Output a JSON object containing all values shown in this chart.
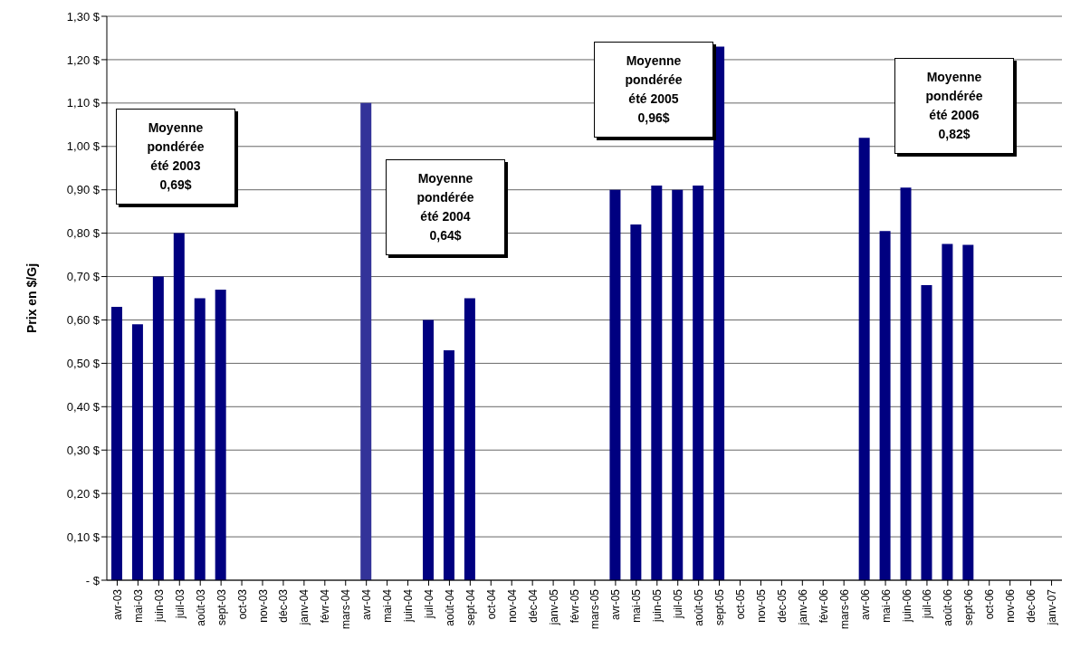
{
  "chart_data": {
    "type": "bar",
    "ylabel": "Prix en $/Gj",
    "categories": [
      "avr-03",
      "mai-03",
      "juin-03",
      "juil-03",
      "août-03",
      "sept-03",
      "oct-03",
      "nov-03",
      "déc-03",
      "janv-04",
      "févr-04",
      "mars-04",
      "avr-04",
      "mai-04",
      "juin-04",
      "juil-04",
      "août-04",
      "sept-04",
      "oct-04",
      "nov-04",
      "déc-04",
      "janv-05",
      "févr-05",
      "mars-05",
      "avr-05",
      "mai-05",
      "juin-05",
      "juil-05",
      "août-05",
      "sept-05",
      "oct-05",
      "nov-05",
      "déc-05",
      "janv-06",
      "févr-06",
      "mars-06",
      "avr-06",
      "mai-06",
      "juin-06",
      "juil-06",
      "août-06",
      "sept-06",
      "oct-06",
      "nov-06",
      "déc-06",
      "janv-07"
    ],
    "values": [
      0.63,
      0.59,
      0.7,
      0.8,
      0.65,
      0.67,
      null,
      null,
      null,
      null,
      null,
      null,
      1.1,
      null,
      null,
      0.6,
      0.53,
      0.65,
      null,
      null,
      null,
      null,
      null,
      null,
      0.9,
      0.82,
      0.91,
      0.9,
      0.91,
      1.23,
      null,
      null,
      null,
      null,
      null,
      null,
      1.02,
      0.805,
      0.905,
      0.68,
      0.775,
      0.773,
      null,
      null,
      null,
      null
    ],
    "colors": [
      "#000080",
      "#000080",
      "#000080",
      "#000080",
      "#000080",
      "#000080",
      "#000080",
      "#000080",
      "#000080",
      "#000080",
      "#000080",
      "#000080",
      "#333399",
      "#000080",
      "#000080",
      "#000080",
      "#000080",
      "#000080",
      "#000080",
      "#000080",
      "#000080",
      "#000080",
      "#000080",
      "#000080",
      "#000080",
      "#000080",
      "#000080",
      "#000080",
      "#000080",
      "#000080",
      "#000080",
      "#000080",
      "#000080",
      "#000080",
      "#000080",
      "#000080",
      "#000080",
      "#000080",
      "#000080",
      "#000080",
      "#000080",
      "#000080",
      "#000080",
      "#000080",
      "#000080",
      "#000080"
    ],
    "ylim": [
      0,
      1.3
    ],
    "yticks": [
      {
        "value": 0,
        "label": "-   $"
      },
      {
        "value": 0.1,
        "label": "0,10 $"
      },
      {
        "value": 0.2,
        "label": "0,20 $"
      },
      {
        "value": 0.3,
        "label": "0,30 $"
      },
      {
        "value": 0.4,
        "label": "0,40 $"
      },
      {
        "value": 0.5,
        "label": "0,50 $"
      },
      {
        "value": 0.6,
        "label": "0,60 $"
      },
      {
        "value": 0.7,
        "label": "0,70 $"
      },
      {
        "value": 0.8,
        "label": "0,80 $"
      },
      {
        "value": 0.9,
        "label": "0,90 $"
      },
      {
        "value": 1.0,
        "label": "1,00 $"
      },
      {
        "value": 1.1,
        "label": "1,10 $"
      },
      {
        "value": 1.2,
        "label": "1,20 $"
      },
      {
        "value": 1.3,
        "label": "1,30 $"
      }
    ],
    "grid": "y",
    "legend": false,
    "annotations": [
      "Moyenne\npondérée\nété 2003\n0,69$",
      "Moyenne\npondérée\nété 2004\n0,64$",
      "Moyenne\npondérée\nété 2005\n0,96$",
      "Moyenne\npondérée\nété 2006\n0,82$"
    ]
  }
}
